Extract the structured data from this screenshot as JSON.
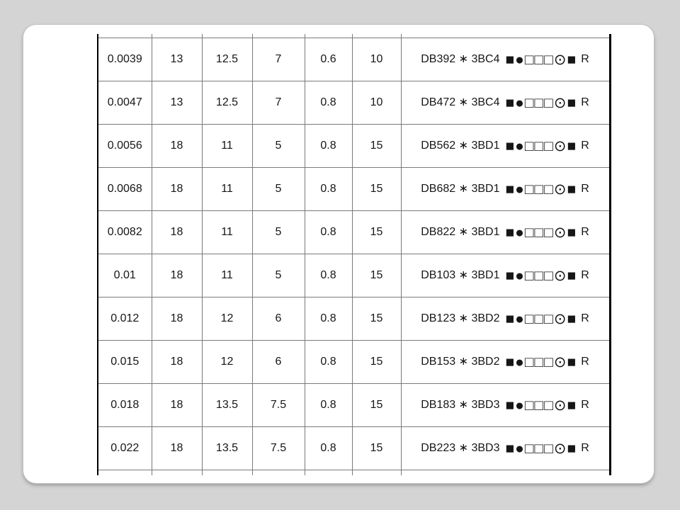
{
  "page": {
    "background_color": "#d4d4d4"
  },
  "card": {
    "background_color": "#ffffff"
  },
  "table": {
    "type": "table",
    "num_columns": 7,
    "rows": [
      {
        "values": [
          "0.0039",
          "13",
          "12.5",
          "7",
          "0.6",
          "10"
        ],
        "part": {
          "label": "DB392 ∗ 3BC4",
          "symbols": "■●□□□⊙■",
          "suffix": "R"
        }
      },
      {
        "values": [
          "0.0047",
          "13",
          "12.5",
          "7",
          "0.8",
          "10"
        ],
        "part": {
          "label": "DB472 ∗ 3BC4",
          "symbols": "■●□□□⊙■",
          "suffix": "R"
        }
      },
      {
        "values": [
          "0.0056",
          "18",
          "11",
          "5",
          "0.8",
          "15"
        ],
        "part": {
          "label": "DB562 ∗ 3BD1",
          "symbols": "■●□□□⊙■",
          "suffix": "R"
        }
      },
      {
        "values": [
          "0.0068",
          "18",
          "11",
          "5",
          "0.8",
          "15"
        ],
        "part": {
          "label": "DB682 ∗ 3BD1",
          "symbols": "■●□□□⊙■",
          "suffix": "R"
        }
      },
      {
        "values": [
          "0.0082",
          "18",
          "11",
          "5",
          "0.8",
          "15"
        ],
        "part": {
          "label": "DB822 ∗ 3BD1",
          "symbols": "■●□□□⊙■",
          "suffix": "R"
        }
      },
      {
        "values": [
          "0.01",
          "18",
          "11",
          "5",
          "0.8",
          "15"
        ],
        "part": {
          "label": "DB103 ∗ 3BD1",
          "symbols": "■●□□□⊙■",
          "suffix": "R"
        }
      },
      {
        "values": [
          "0.012",
          "18",
          "12",
          "6",
          "0.8",
          "15"
        ],
        "part": {
          "label": "DB123 ∗ 3BD2",
          "symbols": "■●□□□⊙■",
          "suffix": "R"
        }
      },
      {
        "values": [
          "0.015",
          "18",
          "12",
          "6",
          "0.8",
          "15"
        ],
        "part": {
          "label": "DB153 ∗ 3BD2",
          "symbols": "■●□□□⊙■",
          "suffix": "R"
        }
      },
      {
        "values": [
          "0.018",
          "18",
          "13.5",
          "7.5",
          "0.8",
          "15"
        ],
        "part": {
          "label": "DB183 ∗ 3BD3",
          "symbols": "■●□□□⊙■",
          "suffix": "R"
        }
      },
      {
        "values": [
          "0.022",
          "18",
          "13.5",
          "7.5",
          "0.8",
          "15"
        ],
        "part": {
          "label": "DB223 ∗ 3BD3",
          "symbols": "■●□□□⊙■",
          "suffix": "R"
        }
      }
    ]
  }
}
